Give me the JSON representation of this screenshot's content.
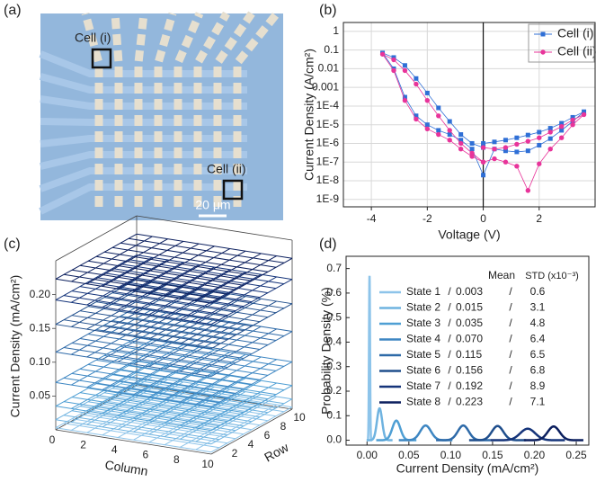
{
  "panel_labels": [
    "(a)",
    "(b)",
    "(c)",
    "(d)"
  ],
  "micrograph": {
    "cell_labels": [
      "Cell (i)",
      "Cell (ii)"
    ],
    "scale_bar": "20 μm"
  },
  "chart_data": [
    {
      "type": "line",
      "xlabel": "Voltage (V)",
      "ylabel": "Current Density (A/cm²)",
      "xlim": [
        -5,
        4
      ],
      "xticks": [
        -4,
        -2,
        0,
        2
      ],
      "yscale": "log",
      "ylim": [
        4e-10,
        3
      ],
      "yticks": [
        1,
        0.1,
        0.01,
        0.001,
        {
          "value": 0.0001,
          "label": "1E-4"
        },
        {
          "value": 1e-05,
          "label": "1E-5"
        },
        {
          "value": 1e-06,
          "label": "1E-6"
        },
        {
          "value": 1e-07,
          "label": "1E-7"
        },
        {
          "value": 1e-08,
          "label": "1E-8"
        },
        {
          "value": 1e-09,
          "label": "1E-9"
        }
      ],
      "grid": true,
      "zero_line": true,
      "legend": "upper right",
      "series": [
        {
          "name": "Cell (i)",
          "color": "#2f6fd6",
          "marker": "square",
          "x": [
            0,
            0.4,
            0.8,
            1.2,
            1.6,
            2.0,
            2.4,
            2.8,
            3.2,
            3.6,
            3.2,
            2.8,
            2.4,
            2.0,
            1.6,
            1.2,
            0.8,
            0.4,
            0,
            -0.4,
            -0.8,
            -1.2,
            -1.6,
            -2.0,
            -2.4,
            -2.8,
            -3.2,
            -3.6,
            -3.2,
            -2.8,
            -2.4,
            -2.0,
            -1.6,
            -1.2,
            -0.8,
            -0.4,
            0
          ],
          "values": [
            1e-06,
            1.2e-06,
            1.5e-06,
            2e-06,
            2.8e-06,
            4e-06,
            6.5e-06,
            1.2e-05,
            2.5e-05,
            5e-05,
            1.5e-05,
            5e-06,
            1.8e-06,
            8e-07,
            4e-07,
            3.5e-07,
            4e-07,
            5e-07,
            2e-08,
            5e-07,
            1.5e-06,
            3e-06,
            5e-06,
            1e-05,
            3e-05,
            0.0003,
            0.01,
            0.07,
            0.04,
            0.015,
            0.003,
            0.0005,
            8e-05,
            1.5e-05,
            3e-06,
            1e-06,
            6e-07
          ]
        },
        {
          "name": "Cell (ii)",
          "color": "#e8349a",
          "marker": "circle",
          "x": [
            0,
            0.4,
            0.8,
            1.2,
            1.6,
            2.0,
            2.4,
            2.8,
            3.2,
            3.6,
            3.2,
            2.8,
            2.4,
            2.0,
            1.6,
            1.2,
            0.8,
            0.4,
            0,
            -0.4,
            -0.8,
            -1.2,
            -1.6,
            -2.0,
            -2.4,
            -2.8,
            -3.2,
            -3.6,
            -3.2,
            -2.8,
            -2.4,
            -2.0,
            -1.6,
            -1.2,
            -0.8,
            -0.4,
            0
          ],
          "values": [
            6e-07,
            5e-07,
            6e-07,
            9e-07,
            1.3e-06,
            2e-06,
            4e-06,
            8e-06,
            1.8e-05,
            3.5e-05,
            1e-05,
            2e-06,
            5e-07,
            8e-08,
            3e-09,
            6e-08,
            1e-07,
            1.5e-07,
            1e-07,
            2e-07,
            5e-07,
            1.5e-06,
            3e-06,
            6e-06,
            2e-05,
            0.0002,
            0.008,
            0.06,
            0.03,
            0.008,
            0.0015,
            0.0002,
            3e-05,
            5e-06,
            1e-06,
            3e-07,
            1e-07
          ]
        }
      ]
    },
    {
      "type": "wireframe3d",
      "zlabel": "Current Density (mA/cm²)",
      "xlabel": "Column",
      "ylabel": "Row",
      "xlim": [
        0,
        10
      ],
      "xticks": [
        0,
        2,
        4,
        6,
        8,
        10
      ],
      "ylim": [
        0,
        10
      ],
      "yticks": [
        2,
        4,
        6,
        8,
        10
      ],
      "zlim": [
        0,
        0.25
      ],
      "zticks": [
        0.05,
        {
          "value": 0.1,
          "label": "0.10"
        },
        0.15,
        {
          "value": 0.2,
          "label": "0.20"
        }
      ],
      "levels": [
        0.003,
        0.015,
        0.035,
        0.07,
        0.115,
        0.156,
        0.192,
        0.223
      ],
      "colors": [
        "#8dc4ea",
        "#6fb3e0",
        "#4f9fd4",
        "#3d86c2",
        "#2e6aa8",
        "#1f4e8c",
        "#15347a",
        "#0b1f5e"
      ]
    },
    {
      "type": "density",
      "xlabel": "Current Density (mA/cm²)",
      "ylabel": "Probability Density (%)",
      "xlim": [
        -0.025,
        0.265
      ],
      "xticks": [
        {
          "value": 0,
          "label": "0.00"
        },
        0.05,
        {
          "value": 0.1,
          "label": "0.10"
        },
        0.15,
        {
          "value": 0.2,
          "label": "0.20"
        },
        0.25
      ],
      "ylim": [
        -0.02,
        0.75
      ],
      "yticks": [
        {
          "value": 0,
          "label": "0.0"
        },
        0.1,
        0.2,
        0.3,
        0.4,
        0.5,
        0.6,
        0.7
      ],
      "legend_headers": [
        "Mean",
        "STD (x10⁻³)"
      ],
      "separator": "/",
      "series": [
        {
          "name": "State 1",
          "color": "#8dc4ea",
          "mean": 0.003,
          "mean_label": "0.003",
          "std": 0.0006,
          "std_label": "0.6",
          "peak": 0.67
        },
        {
          "name": "State 2",
          "color": "#6fb3e0",
          "mean": 0.015,
          "mean_label": "0.015",
          "std": 0.0031,
          "std_label": "3.1",
          "peak": 0.13
        },
        {
          "name": "State 3",
          "color": "#4f9fd4",
          "mean": 0.035,
          "mean_label": "0.035",
          "std": 0.0048,
          "std_label": "4.8",
          "peak": 0.08
        },
        {
          "name": "State 4",
          "color": "#3d86c2",
          "mean": 0.07,
          "mean_label": "0.070",
          "std": 0.0064,
          "std_label": "6.4",
          "peak": 0.06
        },
        {
          "name": "State 5",
          "color": "#2e6aa8",
          "mean": 0.115,
          "mean_label": "0.115",
          "std": 0.0065,
          "std_label": "6.5",
          "peak": 0.06
        },
        {
          "name": "State 6",
          "color": "#1f4e8c",
          "mean": 0.156,
          "mean_label": "0.156",
          "std": 0.0068,
          "std_label": "6.8",
          "peak": 0.058
        },
        {
          "name": "State 7",
          "color": "#15347a",
          "mean": 0.192,
          "mean_label": "0.192",
          "std": 0.0089,
          "std_label": "8.9",
          "peak": 0.047
        },
        {
          "name": "State 8",
          "color": "#0b1f5e",
          "mean": 0.223,
          "mean_label": "0.223",
          "std": 0.0071,
          "std_label": "7.1",
          "peak": 0.056
        }
      ]
    }
  ]
}
